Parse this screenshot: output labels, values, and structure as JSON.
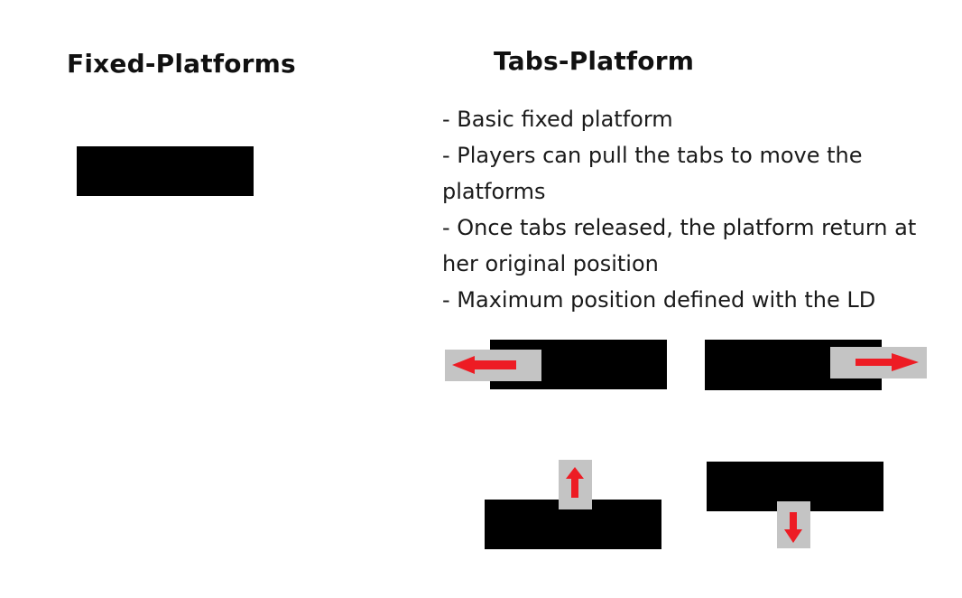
{
  "titles": {
    "fixed": "Fixed-Platforms",
    "tabs": "Tabs-Platform"
  },
  "description": [
    "- Basic fixed platform",
    "- Players can pull the tabs to move the platforms",
    "- Once tabs released, the platform return at her original position",
    "- Maximum position defined with the LD"
  ],
  "colors": {
    "platform": "#000000",
    "tab": "#c4c4c4",
    "arrow": "#ed1c24",
    "background": "#ffffff"
  },
  "icons": {
    "left": "arrow-left-icon",
    "right": "arrow-right-icon",
    "up": "arrow-up-icon",
    "down": "arrow-down-icon"
  }
}
